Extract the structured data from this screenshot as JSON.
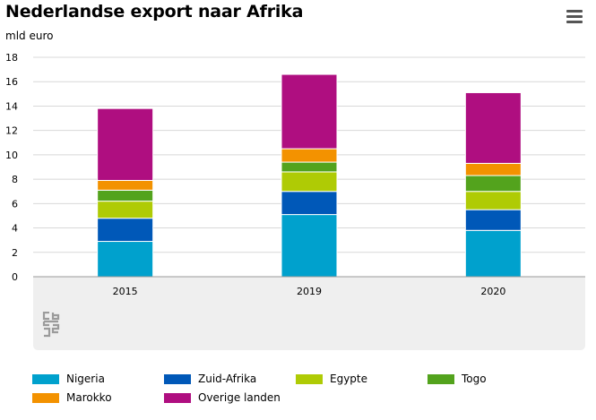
{
  "header": {
    "title": "Nederlandse export naar Afrika",
    "menu_icon": "hamburger-menu-icon"
  },
  "colors": {
    "Nigeria": "#00a1cd",
    "Zuid-Afrika": "#0058b8",
    "Egypte": "#afcb05",
    "Togo": "#53a31d",
    "Marokko": "#f39200",
    "Overige landen": "#af0e80",
    "plot_background": "#efefef",
    "gridline": "#d8d8d8"
  },
  "chart_data": {
    "type": "bar",
    "stacked": true,
    "title": "Nederlandse export naar Afrika",
    "ylabel": "mld euro",
    "xlabel": "",
    "ylim": [
      0,
      18
    ],
    "yticks": [
      0,
      2,
      4,
      6,
      8,
      10,
      12,
      14,
      16,
      18
    ],
    "grid": true,
    "legend_position": "bottom",
    "categories": [
      "2015",
      "2019",
      "2020"
    ],
    "series": [
      {
        "name": "Nigeria",
        "values": [
          2.9,
          5.1,
          3.8
        ]
      },
      {
        "name": "Zuid-Afrika",
        "values": [
          1.9,
          1.9,
          1.7
        ]
      },
      {
        "name": "Egypte",
        "values": [
          1.4,
          1.6,
          1.5
        ]
      },
      {
        "name": "Togo",
        "values": [
          0.9,
          0.8,
          1.3
        ]
      },
      {
        "name": "Marokko",
        "values": [
          0.8,
          1.1,
          1.0
        ]
      },
      {
        "name": "Overige landen",
        "values": [
          5.9,
          6.1,
          5.8
        ]
      }
    ]
  },
  "footer": {
    "logo_icon": "cbs-logo-icon"
  }
}
